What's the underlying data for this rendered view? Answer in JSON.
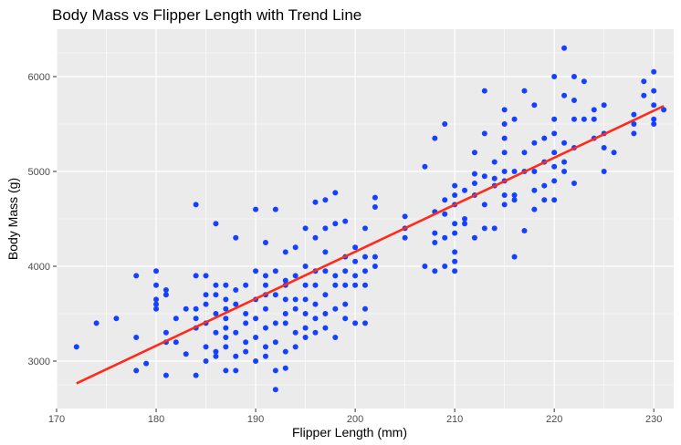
{
  "chart_data": {
    "type": "scatter",
    "title": "Body Mass vs Flipper Length with Trend Line",
    "xlabel": "Flipper Length (mm)",
    "ylabel": "Body Mass (g)",
    "xlim": [
      170,
      232
    ],
    "ylim": [
      2500,
      6500
    ],
    "xticks": [
      170,
      180,
      190,
      200,
      210,
      220,
      230
    ],
    "yticks": [
      3000,
      4000,
      5000,
      6000
    ],
    "grid": true,
    "panel_background": "#EBEBEB",
    "point_color": "#1440FF",
    "trend_color": "#FF2A1A",
    "trend_line": {
      "x": [
        172,
        231
      ],
      "y": [
        2765,
        5690
      ]
    },
    "points": [
      [
        172,
        3150
      ],
      [
        174,
        3400
      ],
      [
        176,
        3450
      ],
      [
        178,
        3250
      ],
      [
        178,
        3900
      ],
      [
        178,
        2900
      ],
      [
        179,
        2975
      ],
      [
        180,
        3950
      ],
      [
        180,
        3800
      ],
      [
        180,
        3650
      ],
      [
        180,
        3550
      ],
      [
        180,
        3600
      ],
      [
        181,
        3750
      ],
      [
        181,
        3700
      ],
      [
        181,
        3300
      ],
      [
        181,
        3200
      ],
      [
        181,
        2850
      ],
      [
        182,
        3450
      ],
      [
        182,
        3200
      ],
      [
        183,
        3550
      ],
      [
        183,
        3075
      ],
      [
        184,
        4650
      ],
      [
        184,
        3900
      ],
      [
        184,
        3550
      ],
      [
        184,
        3450
      ],
      [
        184,
        3350
      ],
      [
        184,
        2850
      ],
      [
        185,
        3900
      ],
      [
        185,
        3700
      ],
      [
        185,
        3600
      ],
      [
        185,
        3400
      ],
      [
        185,
        3150
      ],
      [
        185,
        3000
      ],
      [
        186,
        4450
      ],
      [
        186,
        3800
      ],
      [
        186,
        3700
      ],
      [
        186,
        3500
      ],
      [
        186,
        3300
      ],
      [
        186,
        3100
      ],
      [
        186,
        3050
      ],
      [
        187,
        3800
      ],
      [
        187,
        3650
      ],
      [
        187,
        3550
      ],
      [
        187,
        3450
      ],
      [
        187,
        3350
      ],
      [
        187,
        3250
      ],
      [
        187,
        3150
      ],
      [
        187,
        2900
      ],
      [
        188,
        4300
      ],
      [
        188,
        3750
      ],
      [
        188,
        3600
      ],
      [
        188,
        3300
      ],
      [
        188,
        3050
      ],
      [
        188,
        2900
      ],
      [
        189,
        3800
      ],
      [
        189,
        3500
      ],
      [
        189,
        3400
      ],
      [
        189,
        3200
      ],
      [
        189,
        3100
      ],
      [
        190,
        4600
      ],
      [
        190,
        3950
      ],
      [
        190,
        3650
      ],
      [
        190,
        3450
      ],
      [
        190,
        3250
      ],
      [
        190,
        3000
      ],
      [
        191,
        4250
      ],
      [
        191,
        3900
      ],
      [
        191,
        3800
      ],
      [
        191,
        3700
      ],
      [
        191,
        3550
      ],
      [
        191,
        3350
      ],
      [
        191,
        3150
      ],
      [
        191,
        3050
      ],
      [
        192,
        4600
      ],
      [
        192,
        3950
      ],
      [
        192,
        3700
      ],
      [
        192,
        3400
      ],
      [
        192,
        3200
      ],
      [
        192,
        2900
      ],
      [
        192,
        2700
      ],
      [
        193,
        4150
      ],
      [
        193,
        3850
      ],
      [
        193,
        3800
      ],
      [
        193,
        3650
      ],
      [
        193,
        3500
      ],
      [
        193,
        3400
      ],
      [
        193,
        3100
      ],
      [
        193,
        2925
      ],
      [
        194,
        4200
      ],
      [
        194,
        3900
      ],
      [
        194,
        3650
      ],
      [
        194,
        3550
      ],
      [
        194,
        3300
      ],
      [
        194,
        3150
      ],
      [
        195,
        4400
      ],
      [
        195,
        4000
      ],
      [
        195,
        3800
      ],
      [
        195,
        3650
      ],
      [
        195,
        3500
      ],
      [
        195,
        3350
      ],
      [
        195,
        3250
      ],
      [
        196,
        4675
      ],
      [
        196,
        4300
      ],
      [
        196,
        3950
      ],
      [
        196,
        3800
      ],
      [
        196,
        3600
      ],
      [
        196,
        3450
      ],
      [
        196,
        3300
      ],
      [
        197,
        4700
      ],
      [
        197,
        4400
      ],
      [
        197,
        4150
      ],
      [
        197,
        3950
      ],
      [
        197,
        3700
      ],
      [
        197,
        3500
      ],
      [
        197,
        3350
      ],
      [
        198,
        4775
      ],
      [
        198,
        4450
      ],
      [
        198,
        3900
      ],
      [
        198,
        3800
      ],
      [
        198,
        3550
      ],
      [
        198,
        3250
      ],
      [
        199,
        4475
      ],
      [
        199,
        4100
      ],
      [
        199,
        3950
      ],
      [
        199,
        3800
      ],
      [
        199,
        3600
      ],
      [
        199,
        3450
      ],
      [
        200,
        4200
      ],
      [
        200,
        4050
      ],
      [
        200,
        3900
      ],
      [
        200,
        3800
      ],
      [
        200,
        3400
      ],
      [
        201,
        4400
      ],
      [
        201,
        4100
      ],
      [
        201,
        3950
      ],
      [
        201,
        3800
      ],
      [
        201,
        3550
      ],
      [
        201,
        3400
      ],
      [
        202,
        4725
      ],
      [
        202,
        4625
      ],
      [
        202,
        4100
      ],
      [
        202,
        4000
      ],
      [
        205,
        4525
      ],
      [
        205,
        4400
      ],
      [
        205,
        4300
      ],
      [
        207,
        5050
      ],
      [
        207,
        4000
      ],
      [
        208,
        5350
      ],
      [
        208,
        4575
      ],
      [
        208,
        4350
      ],
      [
        208,
        4250
      ],
      [
        208,
        3950
      ],
      [
        209,
        5500
      ],
      [
        209,
        4700
      ],
      [
        209,
        4550
      ],
      [
        209,
        4300
      ],
      [
        209,
        4000
      ],
      [
        210,
        4850
      ],
      [
        210,
        4750
      ],
      [
        210,
        4650
      ],
      [
        210,
        4450
      ],
      [
        210,
        4350
      ],
      [
        210,
        4150
      ],
      [
        210,
        4050
      ],
      [
        210,
        3950
      ],
      [
        211,
        4800
      ],
      [
        211,
        4500
      ],
      [
        211,
        4450
      ],
      [
        212,
        5200
      ],
      [
        212,
        4975
      ],
      [
        212,
        4875
      ],
      [
        212,
        4750
      ],
      [
        212,
        4300
      ],
      [
        213,
        5850
      ],
      [
        213,
        5400
      ],
      [
        213,
        4950
      ],
      [
        213,
        4650
      ],
      [
        213,
        4400
      ],
      [
        214,
        5100
      ],
      [
        214,
        4925
      ],
      [
        214,
        4850
      ],
      [
        214,
        4400
      ],
      [
        215,
        5650
      ],
      [
        215,
        5500
      ],
      [
        215,
        5350
      ],
      [
        215,
        5200
      ],
      [
        215,
        5000
      ],
      [
        215,
        4900
      ],
      [
        215,
        4750
      ],
      [
        215,
        4650
      ],
      [
        216,
        5550
      ],
      [
        216,
        5000
      ],
      [
        216,
        4750
      ],
      [
        216,
        4700
      ],
      [
        216,
        4100
      ],
      [
        217,
        5850
      ],
      [
        217,
        5200
      ],
      [
        217,
        5000
      ],
      [
        217,
        4375
      ],
      [
        218,
        5700
      ],
      [
        218,
        5300
      ],
      [
        218,
        5000
      ],
      [
        218,
        4800
      ],
      [
        218,
        4600
      ],
      [
        219,
        5350
      ],
      [
        219,
        5100
      ],
      [
        219,
        4850
      ],
      [
        219,
        4700
      ],
      [
        220,
        6000
      ],
      [
        220,
        5550
      ],
      [
        220,
        5400
      ],
      [
        220,
        5200
      ],
      [
        220,
        5050
      ],
      [
        220,
        4900
      ],
      [
        220,
        4700
      ],
      [
        221,
        6300
      ],
      [
        221,
        5800
      ],
      [
        221,
        5300
      ],
      [
        221,
        5100
      ],
      [
        221,
        5000
      ],
      [
        222,
        6000
      ],
      [
        222,
        5750
      ],
      [
        222,
        5550
      ],
      [
        222,
        5250
      ],
      [
        222,
        4875
      ],
      [
        223,
        5950
      ],
      [
        223,
        5550
      ],
      [
        224,
        5650
      ],
      [
        224,
        5550
      ],
      [
        224,
        5350
      ],
      [
        225,
        5700
      ],
      [
        225,
        5400
      ],
      [
        225,
        5250
      ],
      [
        225,
        5000
      ],
      [
        226,
        5200
      ],
      [
        228,
        5600
      ],
      [
        228,
        5500
      ],
      [
        228,
        5400
      ],
      [
        229,
        5950
      ],
      [
        229,
        5800
      ],
      [
        230,
        6050
      ],
      [
        230,
        5850
      ],
      [
        230,
        5700
      ],
      [
        230,
        5550
      ],
      [
        230,
        5500
      ],
      [
        231,
        5650
      ]
    ]
  }
}
